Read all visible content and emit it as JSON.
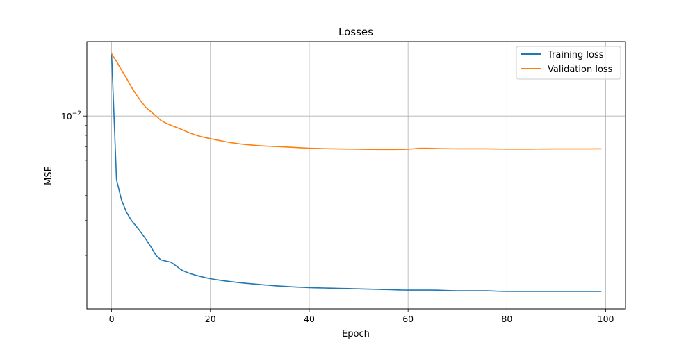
{
  "chart_data": {
    "type": "line",
    "title": "Losses",
    "xlabel": "Epoch",
    "ylabel": "MSE",
    "yscale": "log",
    "xlim": [
      -5,
      104
    ],
    "ylim": [
      0.00108,
      0.0236
    ],
    "grid": true,
    "legend_position": "top-right",
    "x_ticks": [
      0,
      20,
      40,
      60,
      80,
      100
    ],
    "x_tick_labels": [
      "0",
      "20",
      "40",
      "60",
      "80",
      "100"
    ],
    "y_major_ticks": [
      0.01
    ],
    "y_major_tick_labels": [
      {
        "base": "10",
        "exp": "−2"
      }
    ],
    "y_minor_ticks": [
      0.002,
      0.003,
      0.004,
      0.005,
      0.006,
      0.007,
      0.008,
      0.009,
      0.02
    ],
    "x_anchors": [
      0,
      1,
      2,
      3,
      4,
      5,
      6,
      7,
      8,
      9,
      10,
      12,
      14,
      16,
      18,
      20,
      25,
      30,
      35,
      40,
      45,
      50,
      55,
      60,
      63,
      65,
      70,
      75,
      80,
      85,
      90,
      95,
      99
    ],
    "series": [
      {
        "name": "Training loss",
        "color": "#1f77b4",
        "values": [
          0.0205,
          0.0048,
          0.0038,
          0.0033,
          0.003,
          0.0028,
          0.0026,
          0.0024,
          0.0022,
          0.002,
          0.0019,
          0.00185,
          0.0017,
          0.00162,
          0.00157,
          0.00153,
          0.00147,
          0.00143,
          0.0014,
          0.00138,
          0.00137,
          0.00136,
          0.00135,
          0.00134,
          0.00134,
          0.00134,
          0.00133,
          0.00133,
          0.00132,
          0.00132,
          0.00132,
          0.00132,
          0.00132
        ]
      },
      {
        "name": "Validation loss",
        "color": "#ff7f0e",
        "values": [
          0.0205,
          0.0188,
          0.017,
          0.0155,
          0.014,
          0.0128,
          0.0118,
          0.011,
          0.0105,
          0.01,
          0.0095,
          0.009,
          0.0086,
          0.0082,
          0.0079,
          0.0077,
          0.0073,
          0.0071,
          0.007,
          0.0069,
          0.00685,
          0.00682,
          0.0068,
          0.00682,
          0.0069,
          0.00688,
          0.00685,
          0.00685,
          0.00683,
          0.00683,
          0.00684,
          0.00684,
          0.00685
        ]
      }
    ]
  }
}
